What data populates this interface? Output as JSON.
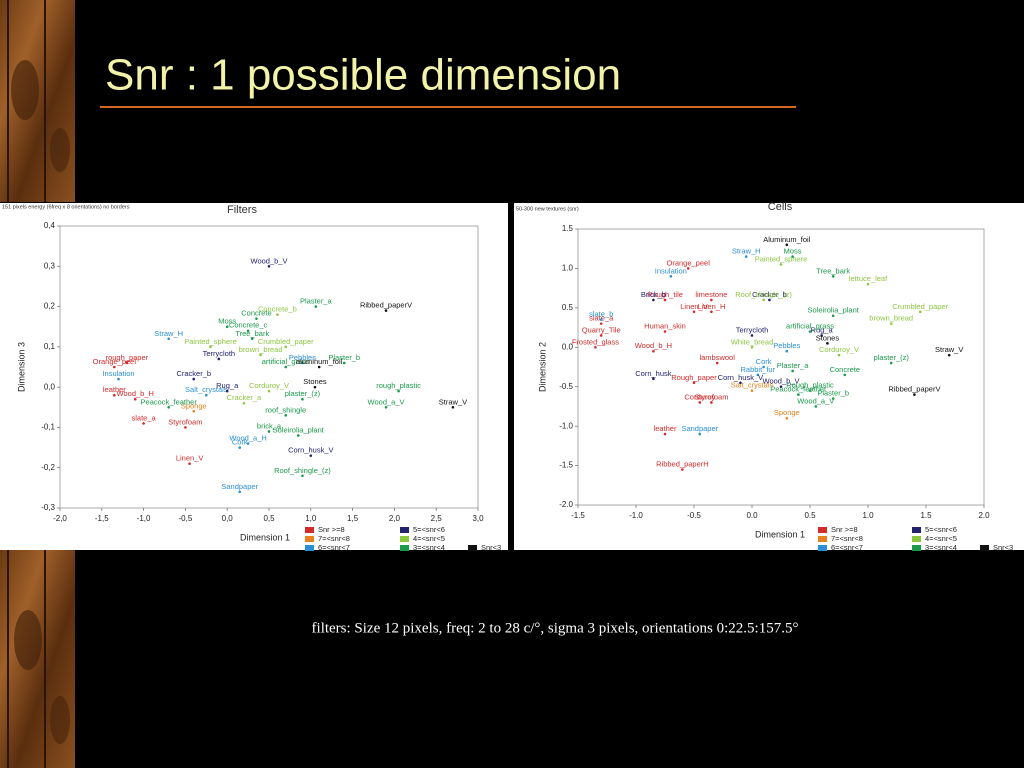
{
  "slide": {
    "title": "Snr :  1 possible dimension",
    "caption": "filters: Size 12 pixels, freq: 2 to 28 c/°, sigma 3 pixels, orientations 0:22.5:157.5°"
  },
  "chart_data": [
    {
      "type": "scatter",
      "title": "Filters",
      "subtitle": "151 pixels energy (6freq x 8 orientations) no borders",
      "xlabel": "Dimension 1",
      "ylabel": "Dimension 3",
      "xlim": [
        -2,
        3
      ],
      "ylim": [
        -0.3,
        0.4
      ],
      "xticks": [
        {
          "value": -2,
          "label": "-2,0"
        },
        {
          "value": -1.5,
          "label": "-1,5"
        },
        {
          "value": -1,
          "label": "-1,0"
        },
        {
          "value": -0.5,
          "label": "-0,5"
        },
        {
          "value": 0,
          "label": "0,0"
        },
        {
          "value": 0.5,
          "label": "0,5"
        },
        {
          "value": 1,
          "label": "1,0"
        },
        {
          "value": 1.5,
          "label": "1,5"
        },
        {
          "value": 2,
          "label": "2,0"
        },
        {
          "value": 2.5,
          "label": "2,5"
        },
        {
          "value": 3,
          "label": "3,0"
        }
      ],
      "yticks": [
        {
          "value": 0.4,
          "label": "0,4"
        },
        {
          "value": 0.3,
          "label": "0,3"
        },
        {
          "value": 0.2,
          "label": "0,2"
        },
        {
          "value": 0.1,
          "label": "0,1"
        },
        {
          "value": 0,
          "label": "0,0"
        },
        {
          "value": -0.1,
          "label": "-0,1"
        },
        {
          "value": -0.2,
          "label": "-0,2"
        },
        {
          "value": -0.3,
          "label": "-0,3"
        }
      ],
      "series": [
        {
          "name": "Snr >=8",
          "color": "#d42a2a",
          "labels": [
            "rough_paper",
            "Orange_peel",
            "leather",
            "Wood_b_H",
            "slate_a",
            "Styrofoam",
            "Linen_V"
          ],
          "x": [
            -1.2,
            -1.35,
            -1.35,
            -1.1,
            -1.0,
            -0.5,
            -0.45
          ],
          "values": [
            0.06,
            0.05,
            -0.02,
            -0.03,
            -0.09,
            -0.1,
            -0.19
          ]
        },
        {
          "name": "7=<snr<8",
          "color": "#e8821e",
          "labels": [
            "Sponge"
          ],
          "x": [
            -0.4
          ],
          "values": [
            -0.06
          ]
        },
        {
          "name": "6=<snr<7",
          "color": "#2b8fd4",
          "labels": [
            "Straw_H",
            "Pebbles",
            "Insulation",
            "Salt_crystals",
            "Wood_a_H",
            "Cork",
            "Sandpaper"
          ],
          "x": [
            -0.7,
            0.9,
            -1.3,
            -0.25,
            0.25,
            0.15,
            0.15
          ],
          "values": [
            0.12,
            0.06,
            0.02,
            -0.02,
            -0.14,
            -0.15,
            -0.26
          ]
        },
        {
          "name": "5=<snr<6",
          "color": "#22226e",
          "labels": [
            "Wood_b_V",
            "Terrycloth",
            "Cracker_b",
            "Rug_a",
            "Corn_husk_V"
          ],
          "x": [
            0.5,
            -0.1,
            -0.4,
            0.0,
            1.0
          ],
          "values": [
            0.3,
            0.07,
            0.02,
            -0.01,
            -0.17
          ]
        },
        {
          "name": "4=<snr<5",
          "color": "#8cc63f",
          "labels": [
            "Concrete_b",
            "Painted_sphere",
            "Crumbled_paper",
            "brown_bread",
            "Corduroy_V",
            "Cracker_a"
          ],
          "x": [
            0.6,
            -0.2,
            0.7,
            0.4,
            0.5,
            0.2
          ],
          "values": [
            0.18,
            0.1,
            0.1,
            0.08,
            -0.01,
            -0.04
          ]
        },
        {
          "name": "3=<snr<4",
          "color": "#1a9a4a",
          "labels": [
            "Plaster_a",
            "Concrete",
            "Moss",
            "Concrete_c",
            "Tree_bark",
            "Plaster_b",
            "artificial_grass",
            "rough_plastic",
            "Wood_a_V",
            "Peacock_feather",
            "roof_shingle",
            "brick_a",
            "Soleirolia_plant",
            "Roof_shingle_(z)",
            "plaster_(z)"
          ],
          "x": [
            1.06,
            0.35,
            0.0,
            0.25,
            0.3,
            1.4,
            0.7,
            2.05,
            1.9,
            -0.7,
            0.7,
            0.5,
            0.85,
            0.9,
            0.9
          ],
          "values": [
            0.2,
            0.17,
            0.15,
            0.14,
            0.12,
            0.06,
            0.05,
            -0.01,
            -0.05,
            -0.05,
            -0.07,
            -0.11,
            -0.12,
            -0.22,
            -0.03
          ]
        },
        {
          "name": "Snr<3",
          "color": "#111111",
          "labels": [
            "Ribbed_paperV",
            "aluminum_foil",
            "Stones",
            "Straw_V"
          ],
          "x": [
            1.9,
            1.1,
            1.05,
            2.7
          ],
          "values": [
            0.19,
            0.05,
            0.0,
            -0.05
          ]
        }
      ]
    },
    {
      "type": "scatter",
      "title": "Cells",
      "subtitle": "50-300 new textures (snr)",
      "xlabel": "Dimension 1",
      "ylabel": "Dimension 2",
      "xlim": [
        -1.5,
        2
      ],
      "ylim": [
        -2,
        1.5
      ],
      "xticks": [
        -1.5,
        {
          "value": -1,
          "label": "-1.0"
        },
        -0.5,
        {
          "value": 0,
          "label": "0.0"
        },
        0.5,
        {
          "value": 1,
          "label": "1.0"
        },
        1.5,
        {
          "value": 2,
          "label": "2.0"
        }
      ],
      "yticks": [
        1.5,
        {
          "value": 1,
          "label": "1.0"
        },
        0.5,
        {
          "value": 0,
          "label": "0.0"
        },
        -0.5,
        {
          "value": -1,
          "label": "-1.0"
        },
        -1.5,
        {
          "value": -2,
          "label": "-2.0"
        }
      ],
      "series": [
        {
          "name": "Snr >=8",
          "color": "#d42a2a",
          "labels": [
            "Orange_peel",
            "Rough_tile",
            "limestone",
            "Linen_V",
            "Linen_H",
            "slate_a",
            "Human_skin",
            "Quarry_Tile",
            "Frosted_glass",
            "Wood_b_H",
            "lambswool",
            "Rough_paper",
            "Corduroy",
            "Styrofoam",
            "leather",
            "Ribbed_paperH"
          ],
          "x": [
            -0.55,
            -0.75,
            -0.35,
            -0.5,
            -0.35,
            -1.3,
            -0.75,
            -1.3,
            -1.35,
            -0.85,
            -0.3,
            -0.5,
            -0.45,
            -0.35,
            -0.75,
            -0.6
          ],
          "values": [
            1.0,
            0.6,
            0.6,
            0.45,
            0.45,
            0.3,
            0.2,
            0.15,
            0.0,
            -0.05,
            -0.2,
            -0.45,
            -0.7,
            -0.7,
            -1.1,
            -1.55
          ]
        },
        {
          "name": "7=<snr<8",
          "color": "#e8821e",
          "labels": [
            "Salt_crystals",
            "Sponge"
          ],
          "x": [
            0.0,
            0.3
          ],
          "values": [
            -0.55,
            -0.9
          ]
        },
        {
          "name": "6=<snr<7",
          "color": "#2b8fd4",
          "labels": [
            "Straw_H",
            "Insulation",
            "slate_b",
            "Cork",
            "Pebbles",
            "Rabbit_fur",
            "Sandpaper"
          ],
          "x": [
            -0.05,
            -0.7,
            -1.3,
            0.1,
            0.3,
            0.05,
            -0.45
          ],
          "values": [
            1.15,
            0.9,
            0.35,
            -0.25,
            -0.05,
            -0.35,
            -1.1
          ]
        },
        {
          "name": "5=<snr<6",
          "color": "#22226e",
          "labels": [
            "Cracker_b",
            "Brick_b",
            "Terrycloth",
            "Rug_a",
            "Corn_husk",
            "Corn_husk_V",
            "Wood_b_V"
          ],
          "x": [
            0.15,
            -0.85,
            0.0,
            0.6,
            -0.85,
            -0.1,
            0.25
          ],
          "values": [
            0.6,
            0.6,
            0.15,
            0.15,
            -0.4,
            -0.45,
            -0.5
          ]
        },
        {
          "name": "4=<snr<5",
          "color": "#8cc63f",
          "labels": [
            "Painted_sphere",
            "lettuce_leaf",
            "Roof_shingle_(z)",
            "Crumbled_paper",
            "brown_bread",
            "White_bread",
            "Corduroy_V"
          ],
          "x": [
            0.25,
            1.0,
            0.1,
            1.45,
            1.2,
            0.0,
            0.75
          ],
          "values": [
            1.05,
            0.8,
            0.6,
            0.45,
            0.3,
            0.0,
            -0.1
          ]
        },
        {
          "name": "3=<snr<4",
          "color": "#1a9a4a",
          "labels": [
            "Moss",
            "Tree_bark",
            "Soleirolia_plant",
            "artificial_grass",
            "plaster_(z)",
            "Plaster_a",
            "Concrete",
            "Rough_plastic",
            "Peacock_feather",
            "Plaster_b",
            "Wood_a_V"
          ],
          "x": [
            0.35,
            0.7,
            0.7,
            0.5,
            1.2,
            0.35,
            0.8,
            0.5,
            0.4,
            0.7,
            0.55
          ],
          "values": [
            1.15,
            0.9,
            0.4,
            0.2,
            -0.2,
            -0.3,
            -0.35,
            -0.55,
            -0.6,
            -0.65,
            -0.75
          ]
        },
        {
          "name": "Snr<3",
          "color": "#111111",
          "labels": [
            "Aluminum_foil",
            "Stones",
            "Straw_V",
            "Ribbed_paperV"
          ],
          "x": [
            0.3,
            0.65,
            1.7,
            1.4
          ],
          "values": [
            1.3,
            0.05,
            -0.1,
            -0.6
          ]
        }
      ]
    }
  ]
}
